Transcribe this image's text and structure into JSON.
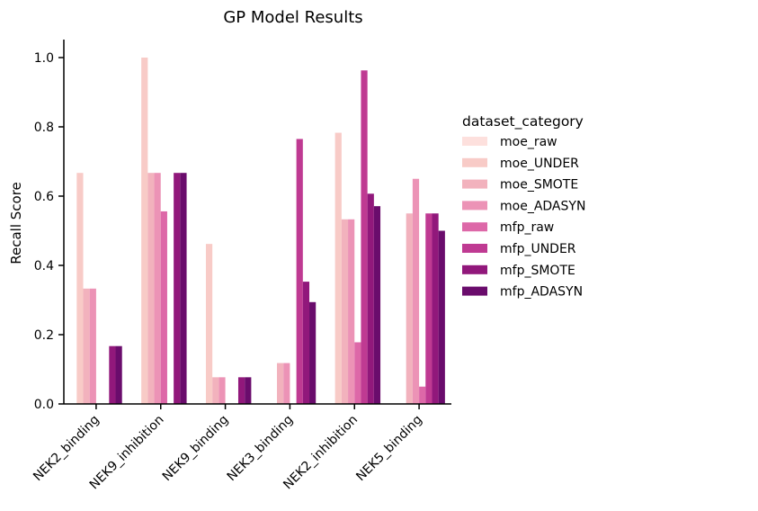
{
  "chart_data": {
    "type": "bar",
    "title": "GP Model Results",
    "xlabel": "",
    "ylabel": "Recall Score",
    "ylim": [
      0,
      1.05
    ],
    "yticks": [
      "0.0",
      "0.2",
      "0.4",
      "0.6",
      "0.8",
      "1.0"
    ],
    "grid": false,
    "legend_position": "right",
    "legend_title": "dataset_category",
    "categories": [
      "NEK2_binding",
      "NEK9_inhibition",
      "NEK9_binding",
      "NEK3_binding",
      "NEK2_inhibition",
      "NEK5_binding"
    ],
    "series": [
      {
        "name": "moe_raw",
        "color": "#fde0dd",
        "values": [
          0,
          0,
          0,
          0,
          0,
          0
        ]
      },
      {
        "name": "moe_UNDER",
        "color": "#f8cbc7",
        "values": [
          0.667,
          1.0,
          0.462,
          0,
          0.783,
          0
        ]
      },
      {
        "name": "moe_SMOTE",
        "color": "#f2b2bd",
        "values": [
          0.333,
          0.667,
          0.077,
          0.118,
          0.533,
          0.55
        ]
      },
      {
        "name": "moe_ADASYN",
        "color": "#ec93b6",
        "values": [
          0.333,
          0.667,
          0.077,
          0.118,
          0.533,
          0.65
        ]
      },
      {
        "name": "mfp_raw",
        "color": "#dd68a8",
        "values": [
          0,
          0.556,
          0,
          0,
          0.178,
          0.05
        ]
      },
      {
        "name": "mfp_UNDER",
        "color": "#bf3a92",
        "values": [
          0,
          0,
          0,
          0.765,
          0.963,
          0.55
        ]
      },
      {
        "name": "mfp_SMOTE",
        "color": "#91187b",
        "values": [
          0.167,
          0.667,
          0.077,
          0.353,
          0.607,
          0.55
        ]
      },
      {
        "name": "mfp_ADASYN",
        "color": "#6a0c6c",
        "values": [
          0.167,
          0.667,
          0.077,
          0.294,
          0.571,
          0.5
        ]
      }
    ]
  }
}
